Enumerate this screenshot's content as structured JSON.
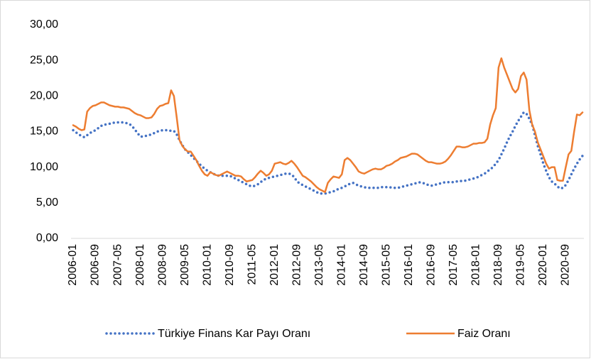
{
  "chart_data": {
    "type": "line",
    "categories": [
      "2006-01",
      null,
      null,
      null,
      null,
      null,
      null,
      null,
      "2006-09",
      null,
      null,
      null,
      null,
      null,
      null,
      null,
      "2007-05",
      null,
      null,
      null,
      null,
      null,
      null,
      null,
      "2008-01",
      null,
      null,
      null,
      null,
      null,
      null,
      null,
      "2008-09",
      null,
      null,
      null,
      null,
      null,
      null,
      null,
      "2009-05",
      null,
      null,
      null,
      null,
      null,
      null,
      null,
      "2010-01",
      null,
      null,
      null,
      null,
      null,
      null,
      null,
      "2010-09",
      null,
      null,
      null,
      null,
      null,
      null,
      null,
      "2011-05",
      null,
      null,
      null,
      null,
      null,
      null,
      null,
      "2012-01",
      null,
      null,
      null,
      null,
      null,
      null,
      null,
      "2012-09",
      null,
      null,
      null,
      null,
      null,
      null,
      null,
      "2013-05",
      null,
      null,
      null,
      null,
      null,
      null,
      null,
      "2014-01",
      null,
      null,
      null,
      null,
      null,
      null,
      null,
      "2014-09",
      null,
      null,
      null,
      null,
      null,
      null,
      null,
      "2015-05",
      null,
      null,
      null,
      null,
      null,
      null,
      null,
      "2016-01",
      null,
      null,
      null,
      null,
      null,
      null,
      null,
      "2016-09",
      null,
      null,
      null,
      null,
      null,
      null,
      null,
      "2017-05",
      null,
      null,
      null,
      null,
      null,
      null,
      null,
      "2018-01",
      null,
      null,
      null,
      null,
      null,
      null,
      null,
      "2018-09",
      null,
      null,
      null,
      null,
      null,
      null,
      null,
      "2019-05",
      null,
      null,
      null,
      null,
      null,
      null,
      null,
      "2020-01",
      null,
      null,
      null,
      null,
      null,
      null,
      null,
      "2020-09",
      null,
      null,
      null,
      null,
      null,
      null
    ],
    "series": [
      {
        "name": "Türkiye Finans Kar Payı Oranı",
        "color": "#4472c4",
        "style": "dotted",
        "values": [
          15.2,
          14.9,
          14.6,
          14.4,
          14.2,
          14.5,
          14.8,
          15.0,
          15.2,
          15.5,
          15.8,
          16.0,
          16.0,
          16.1,
          16.2,
          16.3,
          16.3,
          16.3,
          16.3,
          16.2,
          16.1,
          15.8,
          15.3,
          14.8,
          14.3,
          14.3,
          14.4,
          14.5,
          14.6,
          14.8,
          15.0,
          15.1,
          15.2,
          15.2,
          15.2,
          15.1,
          15.1,
          14.6,
          13.8,
          13.1,
          12.5,
          12.1,
          11.7,
          11.3,
          10.9,
          10.5,
          10.1,
          9.8,
          9.5,
          9.3,
          9.1,
          8.9,
          8.8,
          8.8,
          8.8,
          8.8,
          8.8,
          8.6,
          8.4,
          8.2,
          8.0,
          7.8,
          7.6,
          7.4,
          7.3,
          7.4,
          7.6,
          7.9,
          8.2,
          8.4,
          8.5,
          8.6,
          8.7,
          8.8,
          8.9,
          9.0,
          9.1,
          9.1,
          9.0,
          8.6,
          8.0,
          7.7,
          7.5,
          7.3,
          7.1,
          6.9,
          6.7,
          6.5,
          6.3,
          6.3,
          6.3,
          6.4,
          6.5,
          6.6,
          6.8,
          7.0,
          7.1,
          7.3,
          7.5,
          7.7,
          7.8,
          7.6,
          7.4,
          7.3,
          7.2,
          7.1,
          7.1,
          7.1,
          7.1,
          7.1,
          7.2,
          7.2,
          7.2,
          7.2,
          7.1,
          7.1,
          7.1,
          7.2,
          7.3,
          7.4,
          7.5,
          7.6,
          7.7,
          7.8,
          7.9,
          7.8,
          7.6,
          7.5,
          7.4,
          7.5,
          7.6,
          7.7,
          7.8,
          7.9,
          7.9,
          7.9,
          7.9,
          8.0,
          8.0,
          8.1,
          8.1,
          8.2,
          8.3,
          8.4,
          8.5,
          8.7,
          8.9,
          9.1,
          9.4,
          9.7,
          10.0,
          10.5,
          11.0,
          11.8,
          12.6,
          13.5,
          14.3,
          15.0,
          15.8,
          16.5,
          17.1,
          17.7,
          17.5,
          16.8,
          16.0,
          14.5,
          13.0,
          11.8,
          10.5,
          9.5,
          8.6,
          8.0,
          7.7,
          7.3,
          7.0,
          7.1,
          7.5,
          8.2,
          9.0,
          9.8,
          10.5,
          11.1,
          11.6
        ]
      },
      {
        "name": "Faiz Oranı",
        "color": "#ed7d31",
        "style": "solid",
        "values": [
          15.9,
          15.7,
          15.4,
          15.2,
          15.3,
          17.8,
          18.3,
          18.6,
          18.7,
          18.9,
          19.1,
          19.1,
          18.9,
          18.7,
          18.6,
          18.5,
          18.5,
          18.4,
          18.4,
          18.3,
          18.2,
          17.9,
          17.6,
          17.4,
          17.3,
          17.1,
          16.9,
          16.9,
          17.0,
          17.5,
          18.2,
          18.6,
          18.7,
          18.9,
          19.0,
          20.8,
          20.0,
          17.0,
          13.8,
          13.0,
          12.5,
          12.2,
          12.2,
          11.6,
          11.0,
          10.2,
          9.5,
          9.0,
          8.8,
          9.3,
          9.1,
          8.9,
          8.8,
          9.0,
          9.2,
          9.4,
          9.2,
          9.0,
          8.8,
          8.8,
          8.7,
          8.3,
          8.0,
          8.1,
          8.2,
          8.6,
          9.1,
          9.5,
          9.2,
          8.8,
          9.0,
          9.5,
          10.5,
          10.6,
          10.7,
          10.5,
          10.4,
          10.6,
          10.9,
          10.5,
          10.0,
          9.4,
          8.8,
          8.6,
          8.3,
          8.0,
          7.6,
          7.2,
          6.9,
          6.7,
          6.5,
          7.8,
          8.3,
          8.7,
          8.6,
          8.5,
          9.0,
          11.0,
          11.3,
          11.0,
          10.5,
          10.0,
          9.4,
          9.2,
          9.1,
          9.3,
          9.5,
          9.7,
          9.8,
          9.7,
          9.7,
          9.9,
          10.2,
          10.3,
          10.5,
          10.8,
          11.0,
          11.3,
          11.4,
          11.5,
          11.7,
          11.9,
          11.9,
          11.8,
          11.5,
          11.2,
          10.9,
          10.7,
          10.7,
          10.6,
          10.5,
          10.5,
          10.6,
          10.8,
          11.2,
          11.7,
          12.3,
          12.9,
          12.9,
          12.8,
          12.8,
          12.9,
          13.1,
          13.3,
          13.3,
          13.4,
          13.4,
          13.5,
          14.0,
          16.0,
          17.3,
          18.3,
          24.0,
          25.3,
          24.0,
          23.0,
          22.0,
          21.0,
          20.5,
          21.0,
          22.8,
          23.3,
          22.3,
          18.0,
          16.0,
          15.0,
          13.5,
          12.5,
          11.5,
          10.5,
          9.8,
          10.0,
          10.0,
          8.2,
          8.1,
          8.1,
          10.0,
          11.8,
          12.3,
          15.0,
          17.4,
          17.3,
          17.7
        ]
      }
    ],
    "ylim": [
      0,
      30
    ],
    "yticks": [
      {
        "value": 0,
        "label": "0,00"
      },
      {
        "value": 5,
        "label": "5,00"
      },
      {
        "value": 10,
        "label": "10,00"
      },
      {
        "value": 15,
        "label": "15,00"
      },
      {
        "value": 20,
        "label": "20,00"
      },
      {
        "value": 25,
        "label": "25,00"
      },
      {
        "value": 30,
        "label": "30,00"
      }
    ],
    "grid": false,
    "legend": "bottom"
  }
}
